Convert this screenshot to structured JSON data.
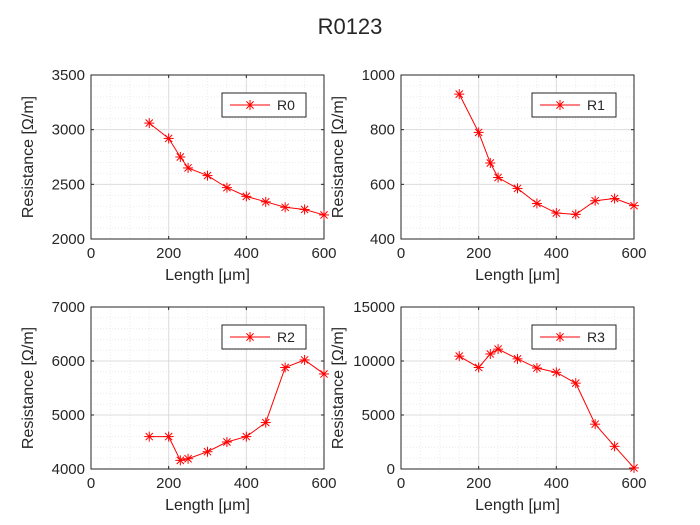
{
  "figure": {
    "title": "R0123"
  },
  "colors": {
    "series": "#ff0000",
    "axis": "#262626",
    "grid_major": "#dcdcdc",
    "grid_minor": "#ececec"
  },
  "chart_data": [
    {
      "type": "line",
      "xlabel": "Length [μm]",
      "ylabel": "Resistance [Ω/m]",
      "xlim": [
        0,
        600
      ],
      "ylim": [
        2000,
        3500
      ],
      "xticks": [
        0,
        200,
        400,
        600
      ],
      "yticks": [
        2000,
        2500,
        3000,
        3500
      ],
      "tick_labels_x": [
        "0",
        "200",
        "400",
        "600"
      ],
      "tick_labels_y": [
        "2000",
        "2500",
        "3000",
        "3500"
      ],
      "grid": true,
      "minor_grid": true,
      "legend": "top-right",
      "marker": "asterisk",
      "series": [
        {
          "name": "R0",
          "x": [
            150,
            200,
            230,
            250,
            300,
            350,
            400,
            450,
            500,
            550,
            600
          ],
          "y": [
            3060,
            2920,
            2750,
            2650,
            2580,
            2470,
            2390,
            2340,
            2290,
            2270,
            2220
          ]
        }
      ]
    },
    {
      "type": "line",
      "xlabel": "Length [μm]",
      "ylabel": "Resistance [Ω/m]",
      "xlim": [
        0,
        600
      ],
      "ylim": [
        400,
        1000
      ],
      "xticks": [
        0,
        200,
        400,
        600
      ],
      "yticks": [
        400,
        600,
        800,
        1000
      ],
      "tick_labels_x": [
        "0",
        "200",
        "400",
        "600"
      ],
      "tick_labels_y": [
        "400",
        "600",
        "800",
        "1000"
      ],
      "grid": true,
      "minor_grid": true,
      "legend": "top-right",
      "marker": "asterisk",
      "series": [
        {
          "name": "R1",
          "x": [
            150,
            200,
            230,
            250,
            300,
            350,
            400,
            450,
            500,
            550,
            600
          ],
          "y": [
            930,
            790,
            678,
            625,
            585,
            530,
            495,
            490,
            540,
            548,
            522
          ]
        }
      ]
    },
    {
      "type": "line",
      "xlabel": "Length [μm]",
      "ylabel": "Resistance [Ω/m]",
      "xlim": [
        0,
        600
      ],
      "ylim": [
        4000,
        7000
      ],
      "xticks": [
        0,
        200,
        400,
        600
      ],
      "yticks": [
        4000,
        5000,
        6000,
        7000
      ],
      "tick_labels_x": [
        "0",
        "200",
        "400",
        "600"
      ],
      "tick_labels_y": [
        "4000",
        "5000",
        "6000",
        "7000"
      ],
      "grid": true,
      "minor_grid": true,
      "legend": "top-right",
      "marker": "asterisk",
      "series": [
        {
          "name": "R2",
          "x": [
            150,
            200,
            230,
            250,
            300,
            350,
            400,
            450,
            500,
            550,
            600
          ],
          "y": [
            4600,
            4600,
            4160,
            4190,
            4320,
            4500,
            4600,
            4860,
            5880,
            6020,
            5760
          ]
        }
      ]
    },
    {
      "type": "line",
      "xlabel": "Length [μm]",
      "ylabel": "Resistance [Ω/m]",
      "xlim": [
        0,
        600
      ],
      "ylim": [
        0,
        15000
      ],
      "xticks": [
        0,
        200,
        400,
        600
      ],
      "yticks": [
        0,
        5000,
        10000,
        15000
      ],
      "tick_labels_x": [
        "0",
        "200",
        "400",
        "600"
      ],
      "tick_labels_y": [
        "0",
        "5000",
        "10000",
        "15000"
      ],
      "grid": true,
      "minor_grid": true,
      "legend": "top-right",
      "marker": "asterisk",
      "series": [
        {
          "name": "R3",
          "x": [
            150,
            200,
            230,
            250,
            300,
            350,
            400,
            450,
            500,
            550,
            600
          ],
          "y": [
            10450,
            9400,
            10650,
            11100,
            10200,
            9350,
            8950,
            7950,
            4150,
            2100,
            100
          ]
        }
      ]
    }
  ]
}
